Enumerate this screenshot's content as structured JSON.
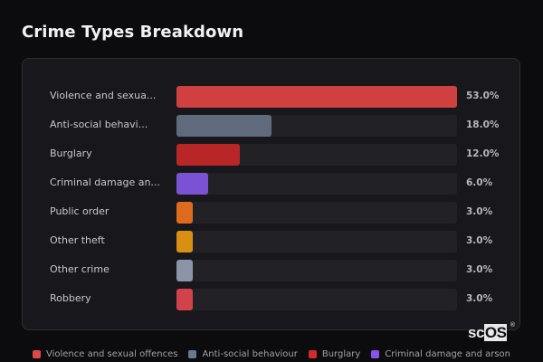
{
  "title": "Crime Types Breakdown",
  "rows": [
    {
      "label": "Violence and sexua...",
      "pct": "53.0%",
      "value": 53.0,
      "color": "#d04040"
    },
    {
      "label": "Anti-social behavi...",
      "pct": "18.0%",
      "value": 18.0,
      "color": "#5f6b7d"
    },
    {
      "label": "Burglary",
      "pct": "12.0%",
      "value": 12.0,
      "color": "#b82628"
    },
    {
      "label": "Criminal damage an...",
      "pct": "6.0%",
      "value": 6.0,
      "color": "#7b52d4"
    },
    {
      "label": "Public order",
      "pct": "3.0%",
      "value": 3.0,
      "color": "#dc6b1e"
    },
    {
      "label": "Other theft",
      "pct": "3.0%",
      "value": 3.0,
      "color": "#d98f14"
    },
    {
      "label": "Other crime",
      "pct": "3.0%",
      "value": 3.0,
      "color": "#8a96a8"
    },
    {
      "label": "Robbery",
      "pct": "3.0%",
      "value": 3.0,
      "color": "#d0434a"
    }
  ],
  "legend": [
    {
      "label": "Violence and sexual offences",
      "color": "#e04848"
    },
    {
      "label": "Anti-social behaviour",
      "color": "#6a7890"
    },
    {
      "label": "Burglary",
      "color": "#d42a2a"
    },
    {
      "label": "Criminal damage and arson",
      "color": "#8455e8"
    }
  ],
  "logo": {
    "sc": "sc",
    "os": "OS",
    "reg": "®"
  },
  "chart_data": {
    "type": "bar",
    "orientation": "horizontal",
    "title": "Crime Types Breakdown",
    "categories": [
      "Violence and sexual offences",
      "Anti-social behaviour",
      "Burglary",
      "Criminal damage and arson",
      "Public order",
      "Other theft",
      "Other crime",
      "Robbery"
    ],
    "values": [
      53.0,
      18.0,
      12.0,
      6.0,
      3.0,
      3.0,
      3.0,
      3.0
    ],
    "unit": "%",
    "xlim": [
      0,
      53
    ],
    "legend_position": "bottom"
  }
}
